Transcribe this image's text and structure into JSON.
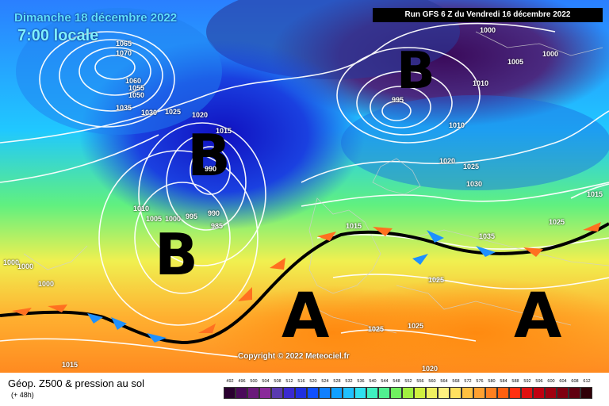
{
  "header": {
    "date": "Dimanche 18 décembre 2022",
    "local_time": "7:00 locale",
    "run_info": "Run GFS 6 Z du Vendredi 16 décembre 2022"
  },
  "centers": {
    "low_north": "B",
    "low_mid": "B",
    "low_south": "B",
    "high_west": "A",
    "high_east": "A"
  },
  "isobar_labels": [
    "1065",
    "1070",
    "1060",
    "1055",
    "1050",
    "1035",
    "1030",
    "1025",
    "1020",
    "1015",
    "990",
    "1010",
    "1005",
    "1000",
    "995",
    "990",
    "985",
    "1000",
    "1000",
    "1000",
    "1010",
    "1015",
    "1025",
    "1025",
    "1035",
    "1020",
    "1015",
    "1025",
    "1030",
    "1010",
    "1005",
    "1000",
    "995",
    "1025",
    "1025",
    "1020",
    "1015",
    "1000"
  ],
  "copyright": "Copyright © 2022 Meteociel.fr",
  "footer": {
    "title": "Géop. Z500 & pression au sol",
    "subtitle": "(+ 48h)"
  },
  "scale": {
    "labels": [
      "492",
      "496",
      "500",
      "504",
      "508",
      "512",
      "516",
      "520",
      "524",
      "528",
      "532",
      "536",
      "540",
      "544",
      "548",
      "552",
      "556",
      "560",
      "564",
      "568",
      "572",
      "576",
      "580",
      "584",
      "588",
      "592",
      "596",
      "600",
      "604",
      "608",
      "612"
    ],
    "colors": [
      "#2a0030",
      "#4a0a5a",
      "#6a1a7a",
      "#8a2a9a",
      "#5a3ab0",
      "#3a2ad0",
      "#2030e0",
      "#1050ff",
      "#1080ff",
      "#10a0ff",
      "#20c0ff",
      "#30e0f0",
      "#40f0c0",
      "#50f090",
      "#70f060",
      "#a0f040",
      "#d0f040",
      "#f0f060",
      "#fff080",
      "#ffe060",
      "#ffc040",
      "#ffa030",
      "#ff8020",
      "#ff6010",
      "#ff3010",
      "#e01010",
      "#c00010",
      "#a00010",
      "#800010",
      "#600010",
      "#300008"
    ]
  }
}
